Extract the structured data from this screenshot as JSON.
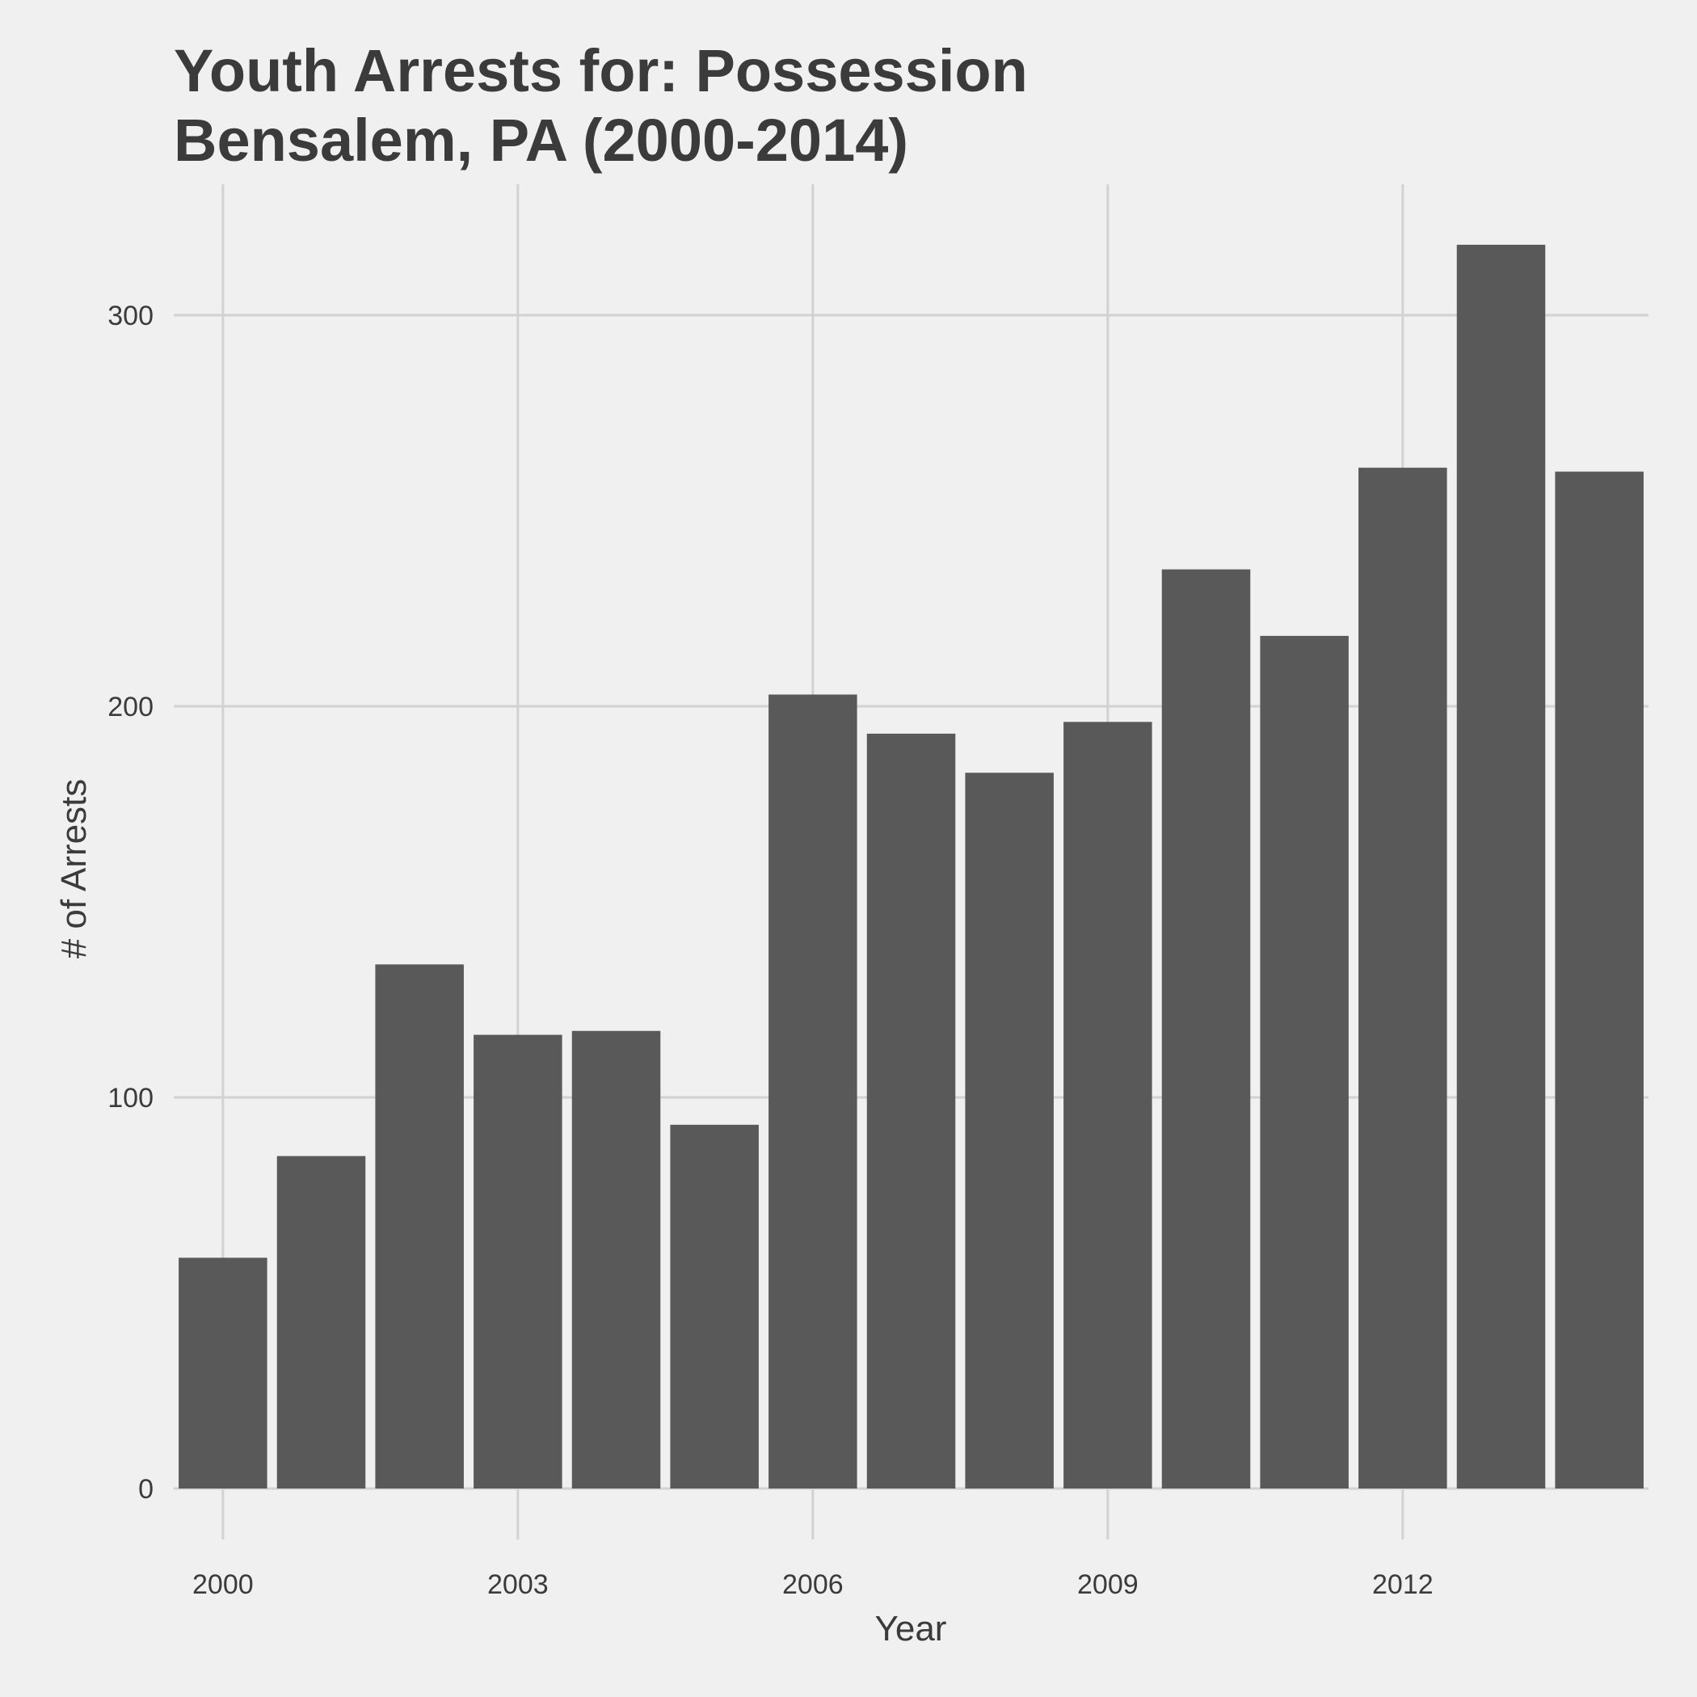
{
  "chart_data": {
    "type": "bar",
    "title_lines": [
      "Youth Arrests for: Possession",
      "Bensalem, PA (2000-2014)"
    ],
    "xlabel": "Year",
    "ylabel": "# of Arrests",
    "x": [
      2000,
      2001,
      2002,
      2003,
      2004,
      2005,
      2006,
      2007,
      2008,
      2009,
      2010,
      2011,
      2012,
      2013,
      2014
    ],
    "values": [
      59,
      85,
      134,
      116,
      117,
      93,
      203,
      193,
      183,
      196,
      235,
      218,
      261,
      318,
      260
    ],
    "xticks": [
      2000,
      2003,
      2006,
      2009,
      2012
    ],
    "yticks": [
      0,
      100,
      200,
      300
    ],
    "ylim": [
      0,
      325
    ],
    "grid": true,
    "bar_color": "#595959",
    "background_color": "#f0f0f0",
    "grid_color": "#d2d2d2",
    "text_color": "#3b3b3b"
  }
}
